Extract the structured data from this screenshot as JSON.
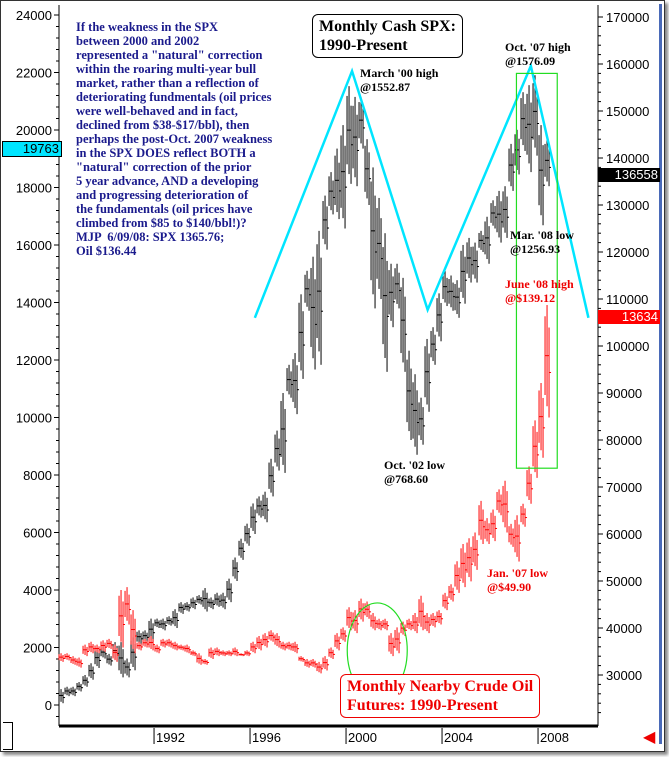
{
  "chart_data": {
    "type": "ohlc-bar",
    "title": "Monthly Cash SPX:\n1990-Present",
    "subtitle": "Monthly Nearby Crude Oil\nFutures: 1990-Present",
    "x_ticks": [
      "1992",
      "1996",
      "2000",
      "2004",
      "2008"
    ],
    "x_range": [
      1988.04,
      2010.5
    ],
    "left_axis": {
      "range": [
        -1800,
        24600
      ],
      "ticks": [
        0,
        2000,
        4000,
        6000,
        8000,
        10000,
        12000,
        14000,
        16000,
        18000,
        20000,
        22000,
        24000
      ],
      "marker_value": "19763",
      "marker_color": "#00e5ff"
    },
    "right_axis": {
      "range": [
        22500,
        173000
      ],
      "ticks": [
        30000,
        40000,
        50000,
        60000,
        70000,
        80000,
        90000,
        100000,
        110000,
        120000,
        130000,
        140000,
        150000,
        160000,
        170000
      ],
      "marker_spx": "136558",
      "marker_oil": "13634"
    },
    "grid": false,
    "colors": {
      "spx": "#000000",
      "oil": "#ff0000",
      "trend": "#00e5ff",
      "highlight": "#22dd22"
    },
    "series": [
      {
        "axis": "right",
        "start_year": 1988,
        "period": "quarter",
        "color": "#000000",
        "ranges": [
          [
            24000,
            27000
          ],
          [
            25500,
            27500
          ],
          [
            25500,
            27500
          ],
          [
            26500,
            28500
          ],
          [
            27500,
            30000
          ],
          [
            29000,
            32500
          ],
          [
            31500,
            35500
          ],
          [
            33500,
            36000
          ],
          [
            32000,
            34500
          ],
          [
            33000,
            37000
          ],
          [
            29500,
            37000
          ],
          [
            29500,
            33500
          ],
          [
            31000,
            38000
          ],
          [
            36500,
            39500
          ],
          [
            37000,
            39500
          ],
          [
            37000,
            42000
          ],
          [
            40000,
            42000
          ],
          [
            39500,
            42000
          ],
          [
            40500,
            42500
          ],
          [
            40000,
            44000
          ],
          [
            43000,
            45500
          ],
          [
            43500,
            45500
          ],
          [
            44000,
            46500
          ],
          [
            45000,
            47000
          ],
          [
            43500,
            48500
          ],
          [
            44000,
            46500
          ],
          [
            44500,
            47500
          ],
          [
            44000,
            47500
          ],
          [
            45500,
            50500
          ],
          [
            50000,
            55000
          ],
          [
            54500,
            59000
          ],
          [
            57500,
            62200
          ],
          [
            60000,
            66500
          ],
          [
            63500,
            68000
          ],
          [
            62500,
            69000
          ],
          [
            68000,
            76000
          ],
          [
            73500,
            82000
          ],
          [
            73000,
            90000
          ],
          [
            89000,
            96000
          ],
          [
            85500,
            98500
          ],
          [
            93000,
            111000
          ],
          [
            107500,
            116000
          ],
          [
            95000,
            119000
          ],
          [
            96000,
            124500
          ],
          [
            120500,
            132000
          ],
          [
            128000,
            137000
          ],
          [
            127000,
            142000
          ],
          [
            125000,
            147000
          ],
          [
            134500,
            155287
          ],
          [
            134000,
            153000
          ],
          [
            142000,
            153000
          ],
          [
            130000,
            144000
          ],
          [
            108000,
            138000
          ],
          [
            110000,
            131500
          ],
          [
            94500,
            124000
          ],
          [
            104000,
            117500
          ],
          [
            108000,
            117500
          ],
          [
            94500,
            114500
          ],
          [
            80000,
            99000
          ],
          [
            76860,
            94000
          ],
          [
            79000,
            89000
          ],
          [
            86000,
            101500
          ],
          [
            96000,
            104000
          ],
          [
            101000,
            111200
          ],
          [
            108500,
            116000
          ],
          [
            107500,
            115000
          ],
          [
            106000,
            114000
          ],
          [
            109000,
            121500
          ],
          [
            113500,
            123000
          ],
          [
            113500,
            122000
          ],
          [
            120000,
            124500
          ],
          [
            117500,
            127500
          ],
          [
            125000,
            131000
          ],
          [
            122000,
            133000
          ],
          [
            123000,
            134000
          ],
          [
            133000,
            143000
          ],
          [
            136500,
            146000
          ],
          [
            141500,
            154000
          ],
          [
            137000,
            155500
          ],
          [
            140500,
            157609
          ],
          [
            125693,
            147000
          ],
          [
            134000,
            144000
          ]
        ]
      },
      {
        "axis": "left",
        "start_year": 1988,
        "period": "quarter",
        "color": "#ff0000",
        "ranges": [
          [
            1500,
            1800
          ],
          [
            1550,
            1800
          ],
          [
            1400,
            1700
          ],
          [
            1300,
            1650
          ],
          [
            1700,
            2100
          ],
          [
            1800,
            2200
          ],
          [
            1800,
            2100
          ],
          [
            1850,
            2250
          ],
          [
            1950,
            2300
          ],
          [
            1500,
            2100
          ],
          [
            2000,
            4000
          ],
          [
            2800,
            4100
          ],
          [
            1800,
            3300
          ],
          [
            1900,
            2200
          ],
          [
            2000,
            2300
          ],
          [
            1900,
            2400
          ],
          [
            1800,
            2100
          ],
          [
            2000,
            2300
          ],
          [
            2000,
            2300
          ],
          [
            1900,
            2200
          ],
          [
            1900,
            2100
          ],
          [
            1800,
            2100
          ],
          [
            1700,
            1900
          ],
          [
            1400,
            1800
          ],
          [
            1400,
            1600
          ],
          [
            1600,
            2000
          ],
          [
            1700,
            2000
          ],
          [
            1700,
            1900
          ],
          [
            1700,
            1900
          ],
          [
            1700,
            2000
          ],
          [
            1700,
            1800
          ],
          [
            1700,
            1900
          ],
          [
            1800,
            2200
          ],
          [
            1900,
            2400
          ],
          [
            2000,
            2500
          ],
          [
            2200,
            2600
          ],
          [
            2000,
            2500
          ],
          [
            1900,
            2200
          ],
          [
            1900,
            2200
          ],
          [
            1800,
            2200
          ],
          [
            1500,
            1700
          ],
          [
            1300,
            1600
          ],
          [
            1300,
            1600
          ],
          [
            1100,
            1500
          ],
          [
            1200,
            1700
          ],
          [
            1600,
            2000
          ],
          [
            1900,
            2500
          ],
          [
            2200,
            2700
          ],
          [
            2600,
            3400
          ],
          [
            2500,
            3300
          ],
          [
            2900,
            3700
          ],
          [
            3000,
            3600
          ],
          [
            2600,
            3200
          ],
          [
            2600,
            3000
          ],
          [
            2600,
            3000
          ],
          [
            1700,
            2500
          ],
          [
            1800,
            2700
          ],
          [
            2400,
            2900
          ],
          [
            2600,
            3000
          ],
          [
            2500,
            3200
          ],
          [
            2600,
            3800
          ],
          [
            2500,
            3200
          ],
          [
            2700,
            3200
          ],
          [
            2800,
            3300
          ],
          [
            3300,
            3900
          ],
          [
            3600,
            4200
          ],
          [
            3900,
            5000
          ],
          [
            4100,
            5600
          ],
          [
            4300,
            5800
          ],
          [
            4700,
            6000
          ],
          [
            5600,
            7100
          ],
          [
            5600,
            6500
          ],
          [
            5700,
            6800
          ],
          [
            6600,
            7500
          ],
          [
            6000,
            7800
          ],
          [
            5500,
            6300
          ],
          [
            4990,
            6600
          ],
          [
            6200,
            7000
          ],
          [
            7000,
            8300
          ],
          [
            7900,
            9900
          ],
          [
            8600,
            11200
          ],
          [
            10000,
            13912
          ]
        ]
      }
    ],
    "trend_line": {
      "axis": "right",
      "points": [
        [
          1996.2,
          106000
        ],
        [
          2000.25,
          158500
        ],
        [
          2003.4,
          107700
        ],
        [
          2007.7,
          159600
        ],
        [
          2010.1,
          106000
        ]
      ]
    },
    "highlight_box": {
      "axis": "right",
      "x": [
        2007.1,
        2008.8
      ],
      "y": [
        74000,
        158000
      ]
    },
    "highlight_ellipse": {
      "axis": "left",
      "center": [
        2001.3,
        1900
      ],
      "x_radius_years": 1.25,
      "y_radius": 1650
    },
    "annotations": {
      "march00": "March '00 high\n@1552.87",
      "oct07": "Oct. '07 high\n@1576.09",
      "mar08": "Mar. '08 low\n@1256.93",
      "oct02": "Oct. '02 low\n@768.60",
      "june08": "June '08 high\n@$139.12",
      "jan07": "Jan. '07 low\n@$49.90"
    }
  },
  "commentary": "If the weakness in the SPX\nbetween 2000 and 2002\nrepresented a \"natural\" correction\nwithin the roaring multi-year bull\nmarket, rather than a reflection of\ndeteriorating fundmentals (oil prices\nwere well-behaved and in fact,\ndeclined from $38-$17/bbl), then\nperhaps the post-Oct. 2007 weakness\nin the SPX DOES reflect BOTH a\n\"natural\" correction of the prior\n5 year advance, AND a developing\nand progressing deterioration of\nthe fundamentals (oil prices have\nclimbed from $85 to $140/bbl!)?\nMJP  6/09/08: SPX 1365.76;\nOil $136.44"
}
